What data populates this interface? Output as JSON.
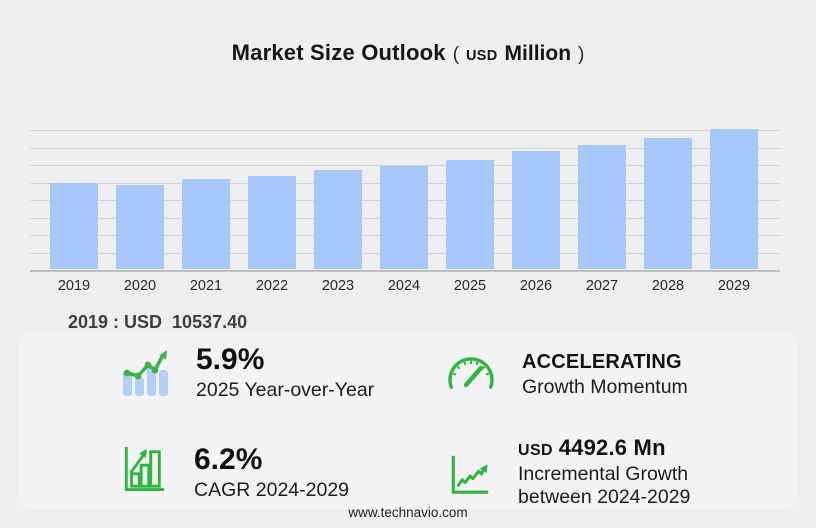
{
  "title": {
    "main": "Market Size Outlook",
    "paren_open": "(",
    "currency": "USD",
    "unit": "Million",
    "paren_close": ")"
  },
  "chart_data": {
    "type": "bar",
    "title": "Market Size Outlook (USD Million)",
    "unit": "USD Million",
    "categories": [
      "2019",
      "2020",
      "2021",
      "2022",
      "2023",
      "2024",
      "2025",
      "2026",
      "2027",
      "2028",
      "2029"
    ],
    "values": [
      10537.4,
      10290,
      11030,
      11400,
      12140,
      12750,
      13490,
      14480,
      15220,
      16200,
      17243
    ],
    "value_note": "Only 2019 labeled on screen (USD 10537.40); other values estimated from bar heights",
    "xlabel": "",
    "ylabel": "",
    "ylim": [
      0,
      17250
    ],
    "grid": true,
    "legend": false,
    "bar_color": "#a7c8fb",
    "annotation": "2019 : USD  10537.40"
  },
  "stats": {
    "yoy": {
      "icon": "trend-bars-icon",
      "value": "5.9%",
      "label": "2025 Year-over-Year"
    },
    "momentum": {
      "icon": "gauge-icon",
      "value": "ACCELERATING",
      "label": "Growth Momentum"
    },
    "cagr": {
      "icon": "bar-growth-icon",
      "value": "6.2%",
      "label": "CAGR 2024-2029"
    },
    "incremental": {
      "icon": "line-growth-icon",
      "currency": "USD",
      "value": "4492.6 Mn",
      "label_line1": "Incremental Growth",
      "label_line2": "between 2024-2029"
    }
  },
  "footer": {
    "website": "www.technavio.com"
  },
  "colors": {
    "background": "#efeff1",
    "panel": "#f4f4f6",
    "bar_blue": "#a7c8fb",
    "icon_green": "#2eb53c",
    "icon_light_blue": "#b3d0f5",
    "gridline": "#d4d4d8"
  }
}
